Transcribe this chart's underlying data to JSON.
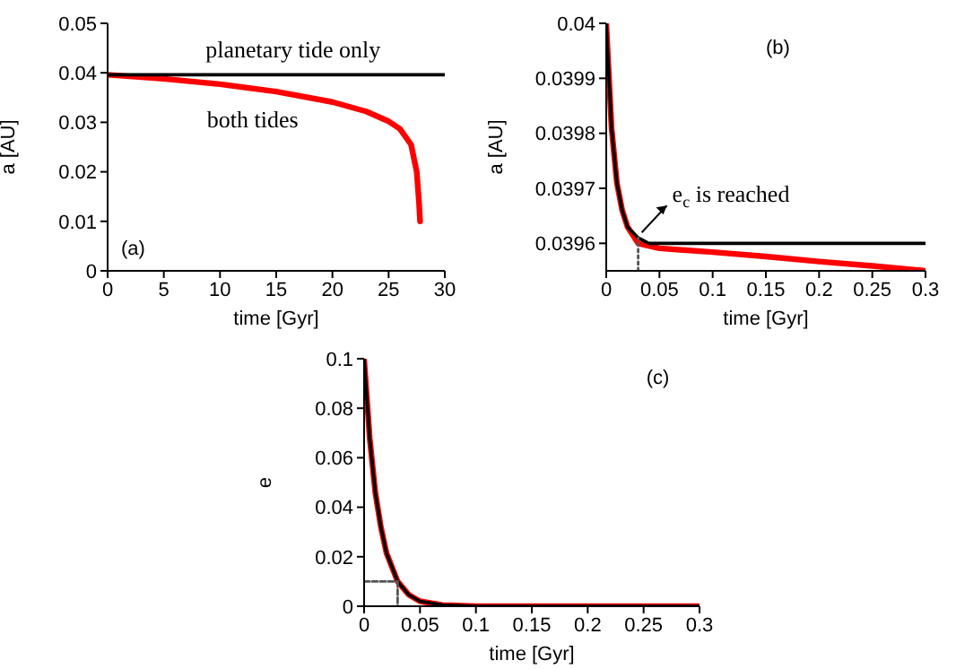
{
  "chart_data": [
    {
      "type": "line",
      "xlabel": "time [Gyr]",
      "ylabel": "a [AU]",
      "xlim": [
        0,
        30
      ],
      "xticks": [
        0,
        5,
        10,
        15,
        20,
        25,
        30
      ],
      "ylim": [
        0,
        0.05
      ],
      "yticks": [
        0,
        0.01,
        0.02,
        0.03,
        0.04,
        0.05
      ],
      "marker": "none",
      "line_style": "solid",
      "series": [
        {
          "color": "#ff0000",
          "x": [
            0,
            5,
            10,
            15,
            20,
            23,
            25,
            26,
            27,
            27.5,
            27.7,
            27.8
          ],
          "values": [
            0.0396,
            0.0388,
            0.0377,
            0.0362,
            0.0341,
            0.0322,
            0.0302,
            0.0287,
            0.0255,
            0.02,
            0.014,
            0.01
          ]
        },
        {
          "color": "#000000",
          "x": [
            0,
            30
          ],
          "values": [
            0.0396,
            0.0396
          ]
        }
      ],
      "annotations": [
        "planetary tide only",
        "both tides",
        "(a)"
      ]
    },
    {
      "type": "line",
      "xlabel": "time [Gyr]",
      "ylabel": "a [AU]",
      "xlim": [
        0,
        0.3
      ],
      "xticks": [
        0,
        0.05,
        0.1,
        0.15,
        0.2,
        0.25,
        0.3
      ],
      "ylim": [
        0.03955,
        0.04
      ],
      "yticks": [
        0.0396,
        0.0397,
        0.0398,
        0.0399,
        0.04
      ],
      "marker": "none",
      "line_style": "solid",
      "series": [
        {
          "color": "#ff0000",
          "x": [
            0,
            0.005,
            0.01,
            0.015,
            0.02,
            0.03,
            0.05,
            0.1,
            0.15,
            0.2,
            0.25,
            0.3
          ],
          "values": [
            0.04,
            0.03981,
            0.03971,
            0.03966,
            0.03963,
            0.0396,
            0.039591,
            0.039584,
            0.039576,
            0.039567,
            0.039559,
            0.03955
          ]
        },
        {
          "color": "#000000",
          "x": [
            0,
            0.005,
            0.01,
            0.015,
            0.02,
            0.03,
            0.04,
            0.3
          ],
          "values": [
            0.04,
            0.03981,
            0.03971,
            0.03966,
            0.03963,
            0.03961,
            0.0396,
            0.0396
          ]
        },
        {
          "color": "#555555",
          "line_style": "dotted",
          "x": [
            0.03,
            0.03
          ],
          "values": [
            0.03955,
            0.03961
          ]
        }
      ],
      "annotations": [
        {
          "text": "e$_{c}$ is reached",
          "x": 0.03,
          "y": 0.03961
        },
        "(b)"
      ]
    },
    {
      "type": "line",
      "xlabel": "time [Gyr]",
      "ylabel": "e",
      "xlim": [
        0,
        0.3
      ],
      "xticks": [
        0,
        0.05,
        0.1,
        0.15,
        0.2,
        0.25,
        0.3
      ],
      "ylim": [
        0,
        0.1
      ],
      "yticks": [
        0,
        0.02,
        0.04,
        0.06,
        0.08,
        0.1
      ],
      "marker": "none",
      "line_style": "solid",
      "series": [
        {
          "color": "#ff0000",
          "x": [
            0,
            0.005,
            0.01,
            0.015,
            0.02,
            0.03,
            0.04,
            0.05,
            0.07,
            0.1,
            0.3
          ],
          "values": [
            0.1,
            0.068,
            0.046,
            0.032,
            0.0215,
            0.01,
            0.0046,
            0.002,
            0.0005,
            0,
            0
          ]
        },
        {
          "color": "#000000",
          "x": [
            0,
            0.005,
            0.01,
            0.015,
            0.02,
            0.03,
            0.04,
            0.05,
            0.07,
            0.1,
            0.3
          ],
          "values": [
            0.1,
            0.068,
            0.046,
            0.032,
            0.0215,
            0.01,
            0.0046,
            0.002,
            0.0005,
            0,
            0
          ]
        },
        {
          "color": "#555555",
          "line_style": "dashed",
          "x": [
            0,
            0.03
          ],
          "values": [
            0.01,
            0.01
          ]
        },
        {
          "color": "#555555",
          "line_style": "dashed",
          "x": [
            0.03,
            0.03
          ],
          "values": [
            0.01,
            0
          ]
        }
      ],
      "annotations": [
        "(c)"
      ]
    }
  ]
}
